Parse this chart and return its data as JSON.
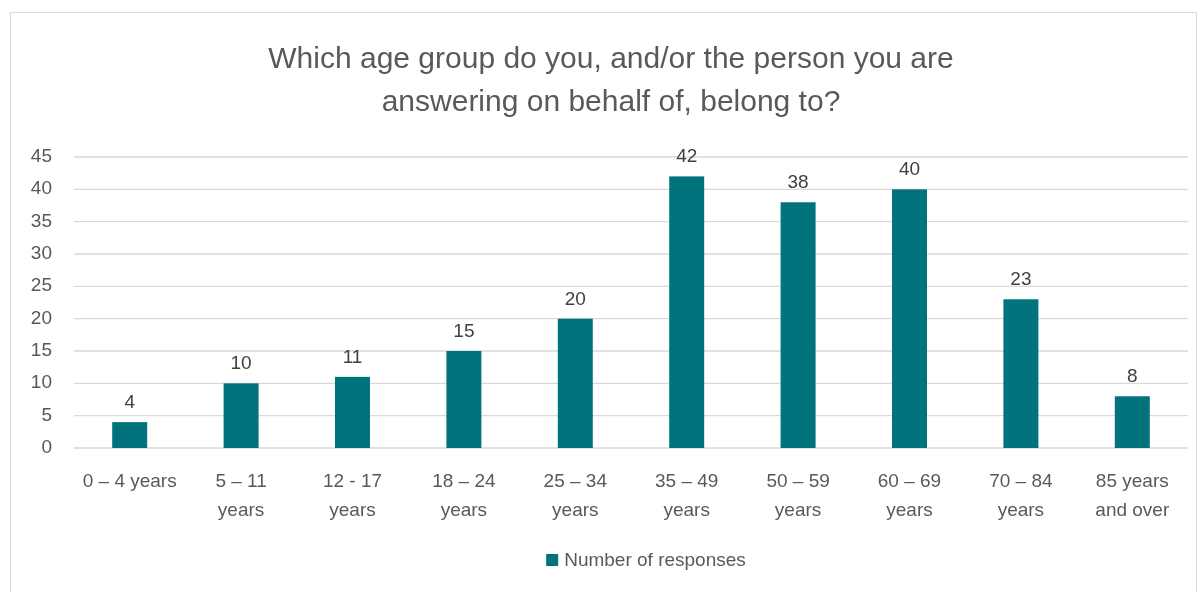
{
  "chart_data": {
    "type": "bar",
    "title": "Which age group do you, and/or the person you are answering on behalf of, belong to?",
    "categories": [
      "0 – 4 years",
      "5 – 11 years",
      "12 - 17 years",
      "18 – 24 years",
      "25 – 34 years",
      "35 – 49 years",
      "50 – 59 years",
      "60 – 69 years",
      "70 – 84 years",
      "85 years and over"
    ],
    "series": [
      {
        "name": "Number of responses",
        "color": "#00737c",
        "values": [
          4,
          10,
          11,
          15,
          20,
          42,
          38,
          40,
          23,
          8
        ]
      }
    ],
    "ylim": [
      0,
      45
    ],
    "yticks": [
      0,
      5,
      10,
      15,
      20,
      25,
      30,
      35,
      40,
      45
    ],
    "grid": "y",
    "legend": "bottom",
    "data_labels": true
  }
}
